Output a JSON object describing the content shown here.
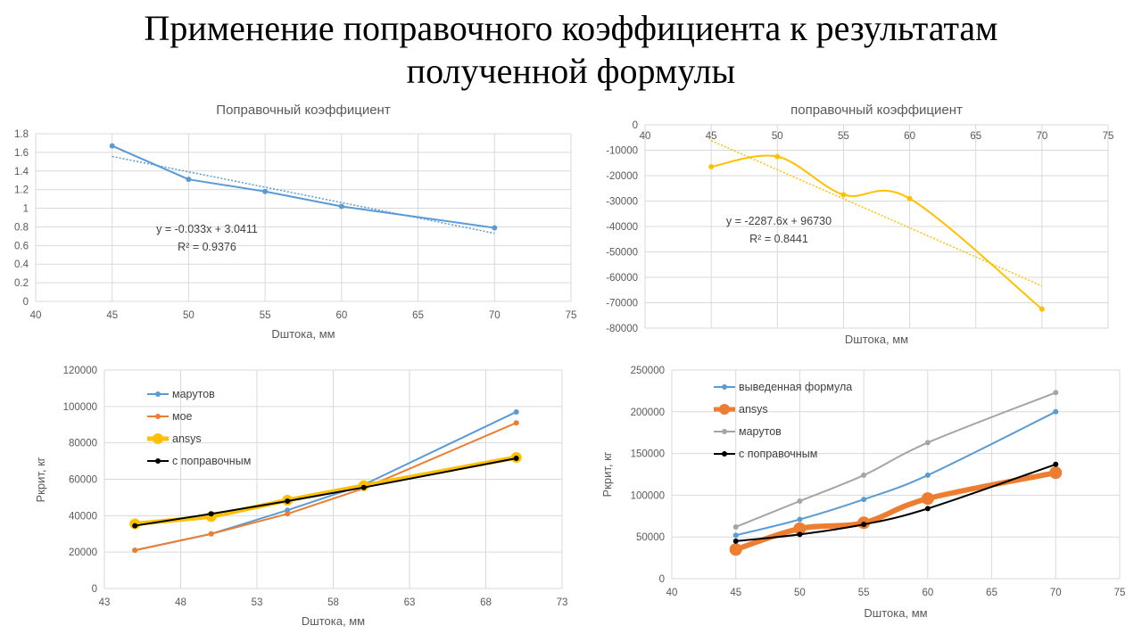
{
  "slide": {
    "title_line1": "Применение поправочного коэффициента к результатам",
    "title_line2": "полученной  формулы"
  },
  "chart_data": [
    {
      "id": "c1",
      "type": "scatter",
      "title": "Поправочный коэффициент",
      "xlabel": "Dштока, мм",
      "ylabel": "",
      "xlim": [
        40,
        75
      ],
      "ylim": [
        0,
        1.8
      ],
      "xticks": [
        "40",
        "45",
        "50",
        "55",
        "60",
        "65",
        "70",
        "75"
      ],
      "yticks": [
        "0",
        "0.2",
        "0.4",
        "0.6",
        "0.8",
        "1",
        "1.2",
        "1.4",
        "1.6",
        "1.8"
      ],
      "grid": true,
      "smooth": false,
      "series": [
        {
          "color": "#5B9BD5",
          "width": 2,
          "x": [
            45,
            50,
            55,
            60,
            70
          ],
          "y": [
            1.67,
            1.31,
            1.18,
            1.02,
            0.79
          ]
        }
      ],
      "trendline": {
        "slope": -0.033,
        "intercept": 3.0411,
        "x": [
          45,
          70
        ],
        "color": "#5B9BD5"
      },
      "equation": [
        "y = -0.033x + 3.0411",
        "R² = 0.9376"
      ]
    },
    {
      "id": "c2",
      "type": "scatter",
      "title": "поправочный коэффициент",
      "xlabel": "Dштока, мм",
      "ylabel": "",
      "xlim": [
        40,
        75
      ],
      "ylim": [
        -80000,
        0
      ],
      "xticks": [
        "40",
        "45",
        "50",
        "55",
        "60",
        "65",
        "70",
        "75"
      ],
      "yticks": [
        "-80000",
        "-70000",
        "-60000",
        "-50000",
        "-40000",
        "-30000",
        "-20000",
        "-10000",
        "0"
      ],
      "grid": true,
      "smooth": true,
      "series": [
        {
          "color": "#FFC000",
          "width": 2,
          "x": [
            45,
            50,
            55,
            60,
            70
          ],
          "y": [
            -16500,
            -12500,
            -27500,
            -29000,
            -72500
          ]
        }
      ],
      "trendline": {
        "slope": -2287.6,
        "intercept": 96730,
        "x": [
          45,
          70
        ],
        "color": "#FFC000"
      },
      "equation": [
        "y = -2287.6x + 96730",
        "R² = 0.8441"
      ]
    },
    {
      "id": "c3",
      "type": "line",
      "title": "",
      "xlabel": "Dштока, мм",
      "ylabel": "Pкрит, кг",
      "xlim": [
        43,
        73
      ],
      "ylim": [
        0,
        120000
      ],
      "xticks": [
        "43",
        "48",
        "53",
        "58",
        "63",
        "68",
        "73"
      ],
      "yticks": [
        "0",
        "20000",
        "40000",
        "60000",
        "80000",
        "100000",
        "120000"
      ],
      "grid": true,
      "smooth": false,
      "legend_position": "top-left",
      "series": [
        {
          "name": "марутов",
          "color": "#5B9BD5",
          "width": 2,
          "marker": 3,
          "x": [
            45,
            50,
            55,
            60,
            70
          ],
          "y": [
            21000,
            30000,
            43000,
            57000,
            97000
          ]
        },
        {
          "name": "мое",
          "color": "#ED7D31",
          "width": 2,
          "marker": 3,
          "x": [
            45,
            50,
            55,
            60,
            70
          ],
          "y": [
            21000,
            30000,
            41000,
            55000,
            91000
          ]
        },
        {
          "name": "ansys",
          "color": "#FFC000",
          "width": 5,
          "marker": 6,
          "x": [
            45,
            50,
            55,
            60,
            70
          ],
          "y": [
            35500,
            39500,
            48500,
            56500,
            72000
          ]
        },
        {
          "name": "с поправочным",
          "color": "#000000",
          "width": 2,
          "marker": 3,
          "x": [
            45,
            50,
            55,
            60,
            70
          ],
          "y": [
            34500,
            41000,
            48000,
            55500,
            71500
          ]
        }
      ]
    },
    {
      "id": "c4",
      "type": "line",
      "title": "",
      "xlabel": "Dштока, мм",
      "ylabel": "Pкрит, кг",
      "xlim": [
        40,
        75
      ],
      "ylim": [
        0,
        250000
      ],
      "xticks": [
        "40",
        "45",
        "50",
        "55",
        "60",
        "65",
        "70",
        "75"
      ],
      "yticks": [
        "0",
        "50000",
        "100000",
        "150000",
        "200000",
        "250000"
      ],
      "grid": true,
      "smooth": true,
      "legend_position": "top-left",
      "series": [
        {
          "name": "выведенная формула",
          "color": "#5B9BD5",
          "width": 2,
          "marker": 3,
          "x": [
            45,
            50,
            55,
            60,
            70
          ],
          "y": [
            52000,
            71000,
            95000,
            124000,
            200000
          ]
        },
        {
          "name": "ansys",
          "color": "#ED7D31",
          "width": 6,
          "marker": 7,
          "x": [
            45,
            50,
            55,
            60,
            70
          ],
          "y": [
            35000,
            60000,
            67000,
            96000,
            127000
          ]
        },
        {
          "name": "марутов",
          "color": "#A5A5A5",
          "width": 2,
          "marker": 3,
          "x": [
            45,
            50,
            55,
            60,
            70
          ],
          "y": [
            62000,
            93000,
            124000,
            163000,
            223000
          ]
        },
        {
          "name": "с поправочным",
          "color": "#000000",
          "width": 2,
          "marker": 3,
          "x": [
            45,
            50,
            55,
            60,
            70
          ],
          "y": [
            45000,
            53000,
            65000,
            84000,
            137000
          ]
        }
      ]
    }
  ]
}
